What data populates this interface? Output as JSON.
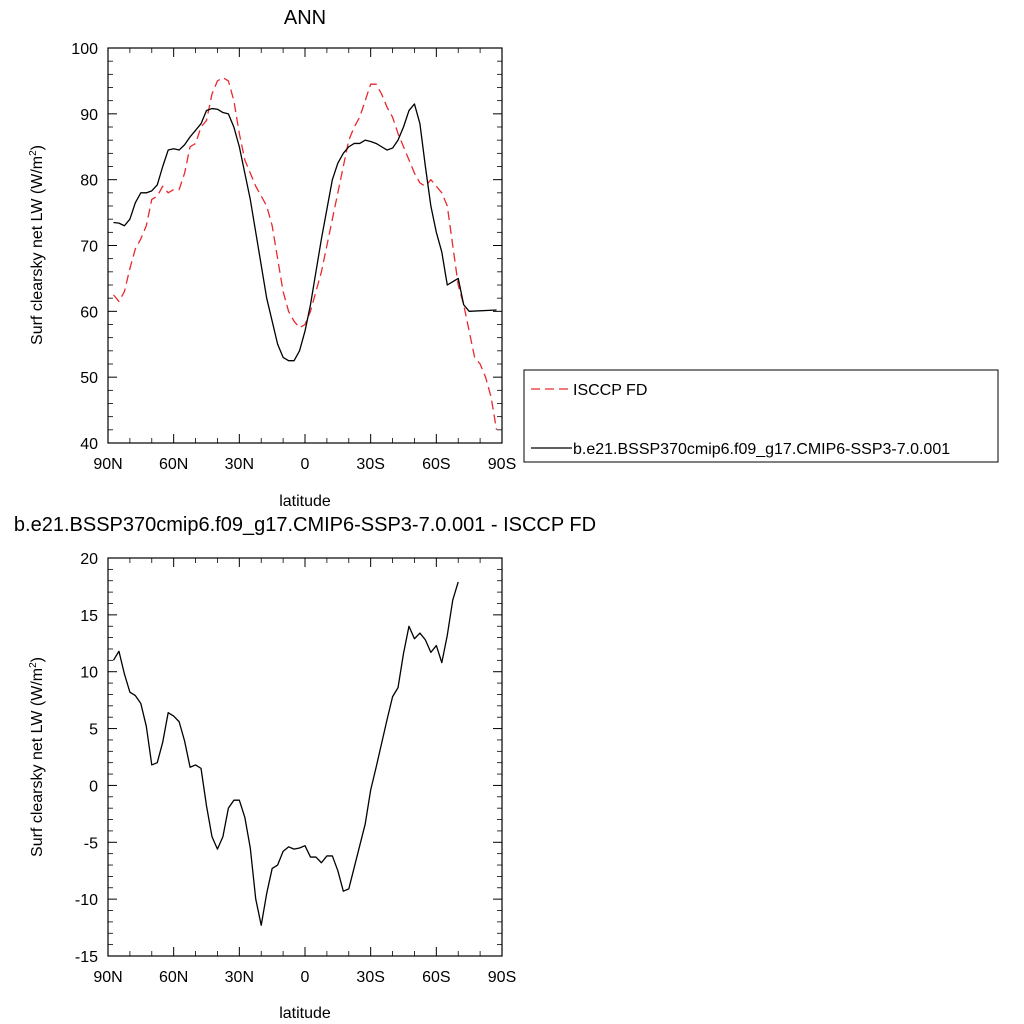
{
  "chart_data": [
    {
      "type": "line",
      "title": "ANN",
      "xlabel": "latitude",
      "ylabel_main": "Surf clearsky net LW (W/m",
      "ylabel_sup": "2",
      "ylabel_close": ")",
      "xlim": [
        90,
        -90
      ],
      "ylim": [
        40,
        100
      ],
      "xticks": [
        {
          "value": 90,
          "label": "90N"
        },
        {
          "value": 60,
          "label": "60N"
        },
        {
          "value": 30,
          "label": "30N"
        },
        {
          "value": 0,
          "label": "0"
        },
        {
          "value": -30,
          "label": "30S"
        },
        {
          "value": -60,
          "label": "60S"
        },
        {
          "value": -90,
          "label": "90S"
        }
      ],
      "yticks": [
        40,
        50,
        60,
        70,
        80,
        90,
        100
      ],
      "legend_position": "right",
      "series": [
        {
          "name": "ISCCP FD",
          "color": "#e8292e",
          "dash": "dashed",
          "points": [
            [
              87.5,
              62.5
            ],
            [
              85,
              61.5
            ],
            [
              82.5,
              63
            ],
            [
              80,
              66.5
            ],
            [
              77.5,
              69.5
            ],
            [
              75,
              71
            ],
            [
              72.5,
              73
            ],
            [
              70,
              77
            ],
            [
              67.5,
              77.5
            ],
            [
              65,
              79
            ],
            [
              62.5,
              78
            ],
            [
              60,
              78.5
            ],
            [
              57.5,
              78.5
            ],
            [
              55,
              81
            ],
            [
              52.5,
              85
            ],
            [
              50,
              85.5
            ],
            [
              47.5,
              88
            ],
            [
              45,
              89
            ],
            [
              42.5,
              93
            ],
            [
              40,
              95
            ],
            [
              37.5,
              95.5
            ],
            [
              35,
              95
            ],
            [
              32.5,
              92
            ],
            [
              30,
              87
            ],
            [
              27.5,
              83
            ],
            [
              25,
              81
            ],
            [
              22.5,
              79
            ],
            [
              20,
              77.5
            ],
            [
              17.5,
              76
            ],
            [
              15,
              73
            ],
            [
              12.5,
              68
            ],
            [
              10,
              63
            ],
            [
              7.5,
              60
            ],
            [
              5,
              58.5
            ],
            [
              2.5,
              57.5
            ],
            [
              0,
              58
            ],
            [
              -2.5,
              60
            ],
            [
              -5,
              63
            ],
            [
              -7.5,
              66
            ],
            [
              -10,
              70
            ],
            [
              -12.5,
              74
            ],
            [
              -15,
              78
            ],
            [
              -17.5,
              82
            ],
            [
              -20,
              86
            ],
            [
              -22.5,
              88
            ],
            [
              -25,
              89.5
            ],
            [
              -27.5,
              92
            ],
            [
              -30,
              94.5
            ],
            [
              -32.5,
              94.5
            ],
            [
              -35,
              93
            ],
            [
              -37.5,
              91
            ],
            [
              -40,
              89.5
            ],
            [
              -42.5,
              87
            ],
            [
              -45,
              85
            ],
            [
              -47.5,
              83
            ],
            [
              -50,
              81
            ],
            [
              -52.5,
              79.5
            ],
            [
              -55,
              79
            ],
            [
              -57.5,
              80
            ],
            [
              -60,
              79
            ],
            [
              -62.5,
              78
            ],
            [
              -65,
              76
            ],
            [
              -67.5,
              70
            ],
            [
              -70,
              64
            ],
            [
              -72.5,
              61
            ],
            [
              -75,
              57
            ],
            [
              -77.5,
              53
            ],
            [
              -80,
              52
            ],
            [
              -82.5,
              50
            ],
            [
              -85,
              47
            ],
            [
              -87.5,
              42
            ]
          ]
        },
        {
          "name": "b.e21.BSSP370cmip6.f09_g17.CMIP6-SSP3-7.0.001",
          "color": "#000000",
          "dash": "solid",
          "points": [
            [
              87.5,
              73.5
            ],
            [
              85,
              73.4
            ],
            [
              82.5,
              73
            ],
            [
              80,
              74
            ],
            [
              77.5,
              76.5
            ],
            [
              75,
              78
            ],
            [
              72.5,
              78
            ],
            [
              70,
              78.3
            ],
            [
              67.5,
              79.2
            ],
            [
              65,
              82
            ],
            [
              62.5,
              84.5
            ],
            [
              60,
              84.7
            ],
            [
              57.5,
              84.5
            ],
            [
              55,
              85.3
            ],
            [
              52.5,
              86.5
            ],
            [
              50,
              87.5
            ],
            [
              47.5,
              88.5
            ],
            [
              45,
              90.5
            ],
            [
              42.5,
              90.8
            ],
            [
              40,
              90.7
            ],
            [
              37.5,
              90.2
            ],
            [
              35,
              90
            ],
            [
              32.5,
              88
            ],
            [
              30,
              85
            ],
            [
              27.5,
              81
            ],
            [
              25,
              77
            ],
            [
              22.5,
              72
            ],
            [
              20,
              67
            ],
            [
              17.5,
              62
            ],
            [
              15,
              58.5
            ],
            [
              12.5,
              55
            ],
            [
              10,
              53
            ],
            [
              7.5,
              52.5
            ],
            [
              5,
              52.5
            ],
            [
              2.5,
              54
            ],
            [
              0,
              57
            ],
            [
              -2.5,
              61
            ],
            [
              -5,
              66
            ],
            [
              -7.5,
              71
            ],
            [
              -10,
              75.5
            ],
            [
              -12.5,
              80
            ],
            [
              -15,
              82.5
            ],
            [
              -17.5,
              84
            ],
            [
              -20,
              85
            ],
            [
              -22.5,
              85.5
            ],
            [
              -25,
              85.5
            ],
            [
              -27.5,
              86
            ],
            [
              -30,
              85.8
            ],
            [
              -32.5,
              85.5
            ],
            [
              -35,
              85
            ],
            [
              -37.5,
              84.5
            ],
            [
              -40,
              84.8
            ],
            [
              -42.5,
              86
            ],
            [
              -45,
              88
            ],
            [
              -47.5,
              90.5
            ],
            [
              -50,
              91.5
            ],
            [
              -52.5,
              88.5
            ],
            [
              -55,
              82
            ],
            [
              -57.5,
              76
            ],
            [
              -60,
              72
            ],
            [
              -62.5,
              69
            ],
            [
              -65,
              64
            ],
            [
              -67.5,
              64.5
            ],
            [
              -70,
              65
            ],
            [
              -72.5,
              61
            ],
            [
              -75,
              60
            ],
            [
              -87.5,
              60.2
            ]
          ]
        }
      ]
    },
    {
      "type": "line",
      "title": "b.e21.BSSP370cmip6.f09_g17.CMIP6-SSP3-7.0.001 - ISCCP FD",
      "xlabel": "latitude",
      "ylabel_main": "Surf clearsky net LW (W/m",
      "ylabel_sup": "2",
      "ylabel_close": ")",
      "xlim": [
        90,
        -90
      ],
      "ylim": [
        -15,
        20
      ],
      "xticks": [
        {
          "value": 90,
          "label": "90N"
        },
        {
          "value": 60,
          "label": "60N"
        },
        {
          "value": 30,
          "label": "30N"
        },
        {
          "value": 0,
          "label": "0"
        },
        {
          "value": -30,
          "label": "30S"
        },
        {
          "value": -60,
          "label": "60S"
        },
        {
          "value": -90,
          "label": "90S"
        }
      ],
      "yticks": [
        -15,
        -10,
        -5,
        0,
        5,
        10,
        15,
        20
      ],
      "series": [
        {
          "color": "#000000",
          "dash": "solid",
          "points": [
            [
              87.5,
              11
            ],
            [
              85,
              11.8
            ],
            [
              82.5,
              9.8
            ],
            [
              80,
              8.2
            ],
            [
              77.5,
              7.9
            ],
            [
              75,
              7.2
            ],
            [
              72.5,
              5.2
            ],
            [
              70,
              1.8
            ],
            [
              67.5,
              2
            ],
            [
              65,
              3.8
            ],
            [
              62.5,
              6.4
            ],
            [
              60,
              6.1
            ],
            [
              57.5,
              5.6
            ],
            [
              55,
              3.9
            ],
            [
              52.5,
              1.6
            ],
            [
              50,
              1.8
            ],
            [
              47.5,
              1.5
            ],
            [
              45,
              -1.8
            ],
            [
              42.5,
              -4.5
            ],
            [
              40,
              -5.6
            ],
            [
              37.5,
              -4.5
            ],
            [
              35,
              -2
            ],
            [
              32.5,
              -1.3
            ],
            [
              30,
              -1.3
            ],
            [
              27.5,
              -2.8
            ],
            [
              25,
              -5.5
            ],
            [
              22.5,
              -10
            ],
            [
              20,
              -12.3
            ],
            [
              17.5,
              -9.5
            ],
            [
              15,
              -7.3
            ],
            [
              12.5,
              -7
            ],
            [
              10,
              -5.8
            ],
            [
              7.5,
              -5.4
            ],
            [
              5,
              -5.6
            ],
            [
              2.5,
              -5.5
            ],
            [
              0,
              -5.3
            ],
            [
              -2.5,
              -6.3
            ],
            [
              -5,
              -6.3
            ],
            [
              -7.5,
              -6.8
            ],
            [
              -10,
              -6.2
            ],
            [
              -12.5,
              -6.2
            ],
            [
              -15,
              -7.5
            ],
            [
              -17.5,
              -9.3
            ],
            [
              -20,
              -9.1
            ],
            [
              -22.5,
              -7.2
            ],
            [
              -25,
              -5.3
            ],
            [
              -27.5,
              -3.4
            ],
            [
              -30,
              -0.4
            ],
            [
              -32.5,
              1.6
            ],
            [
              -35,
              3.7
            ],
            [
              -37.5,
              5.8
            ],
            [
              -40,
              7.8
            ],
            [
              -42.5,
              8.6
            ],
            [
              -45,
              11.6
            ],
            [
              -47.5,
              14
            ],
            [
              -50,
              12.9
            ],
            [
              -52.5,
              13.4
            ],
            [
              -55,
              12.8
            ],
            [
              -57.5,
              11.7
            ],
            [
              -60,
              12.3
            ],
            [
              -62.5,
              10.8
            ],
            [
              -65,
              13.2
            ],
            [
              -67.5,
              16.3
            ],
            [
              -70,
              17.9
            ]
          ]
        }
      ]
    }
  ]
}
